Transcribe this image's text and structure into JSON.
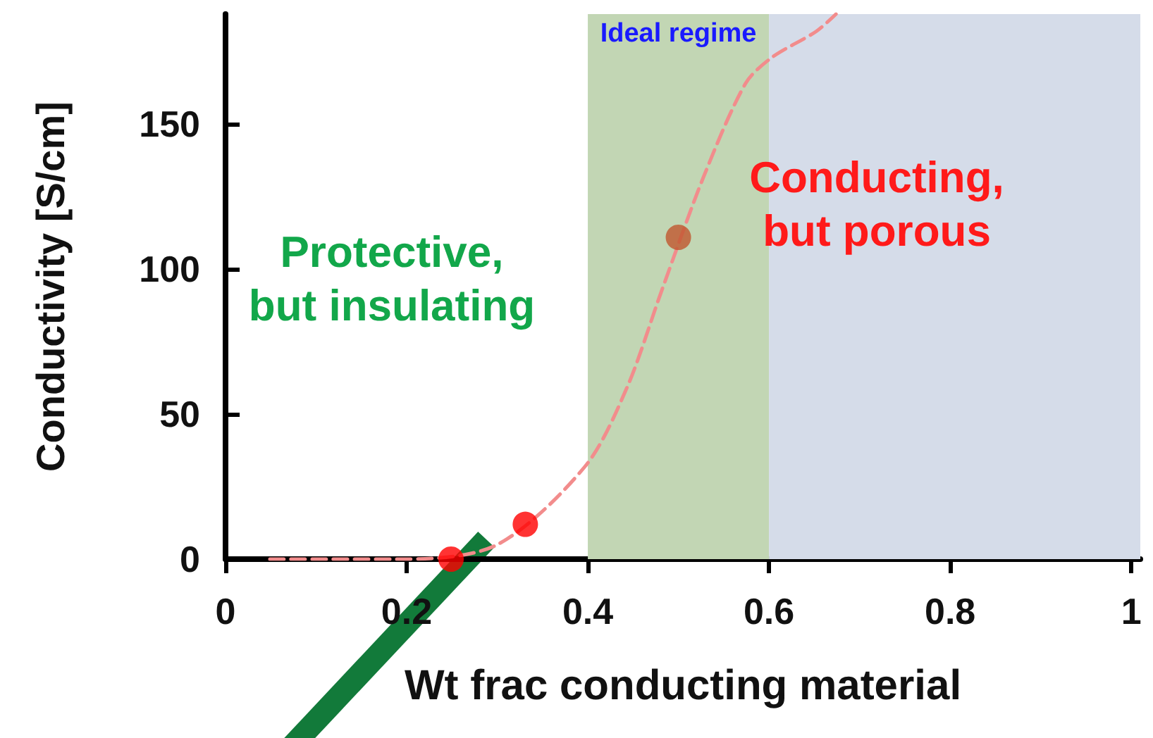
{
  "chart_data": {
    "type": "line",
    "xlabel": "Wt frac conducting material",
    "ylabel": "Conductivity [S/cm]",
    "xlim": [
      0,
      1.01
    ],
    "xticks": [
      0,
      0.2,
      0.4,
      0.6,
      0.8,
      1
    ],
    "ylim": [
      0,
      188
    ],
    "yticks": [
      0,
      50,
      100,
      150
    ],
    "series": [
      {
        "color": "#f28c8c",
        "line_style": "dashed",
        "marker": "none",
        "x": [
          0.049,
          0.199,
          0.3,
          0.397,
          0.443,
          0.482,
          0.528,
          0.574,
          0.603,
          0.652,
          0.674
        ],
        "values": [
          0,
          0,
          5,
          32,
          59,
          93,
          132,
          164,
          173,
          182,
          188
        ]
      },
      {
        "type": "scatter",
        "marker": "circle",
        "colors": [
          "#ff0000",
          "#ff0000",
          "#c0562e"
        ],
        "x": [
          0.249,
          0.331,
          0.5
        ],
        "values": [
          0,
          12,
          111
        ]
      }
    ],
    "bands": [
      {
        "axis": "x",
        "from": 0.4,
        "to": 0.6,
        "label": "Ideal regime",
        "color": "#c2d6b4"
      },
      {
        "axis": "x",
        "from": 0.6,
        "to": 1.01,
        "color": "#d5dce9"
      }
    ],
    "annotations": [
      "Protective,\nbut insulating",
      "Conducting,\nbut porous"
    ],
    "grid": false
  }
}
